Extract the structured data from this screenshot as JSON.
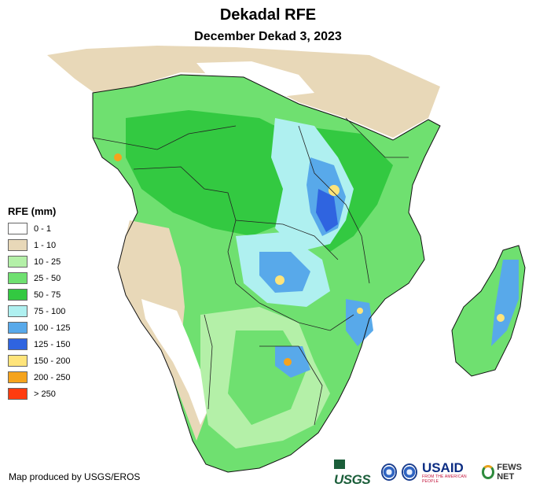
{
  "title": "Dekadal RFE",
  "subtitle": "December Dekad 3, 2023",
  "legend": {
    "title": "RFE (mm)",
    "items": [
      {
        "label": "0 - 1",
        "color": "#ffffff"
      },
      {
        "label": "1 - 10",
        "color": "#e8d8b8"
      },
      {
        "label": "10 - 25",
        "color": "#b4f0a8"
      },
      {
        "label": "25 - 50",
        "color": "#6fe070"
      },
      {
        "label": "50 - 75",
        "color": "#33c941"
      },
      {
        "label": "75 - 100",
        "color": "#aff0f0"
      },
      {
        "label": "100 - 125",
        "color": "#58a9ea"
      },
      {
        "label": "125 - 150",
        "color": "#2f64e0"
      },
      {
        "label": "150 - 200",
        "color": "#ffe47a"
      },
      {
        "label": "200 - 250",
        "color": "#f5a31c"
      },
      {
        "label": "> 250",
        "color": "#ff3b0f"
      }
    ]
  },
  "credit": "Map produced by USGS/EROS",
  "logos": {
    "usgs": "USGS",
    "usaid": "USAID",
    "usaid_tagline": "FROM THE AMERICAN PEOPLE",
    "fews": "FEWS NET"
  }
}
